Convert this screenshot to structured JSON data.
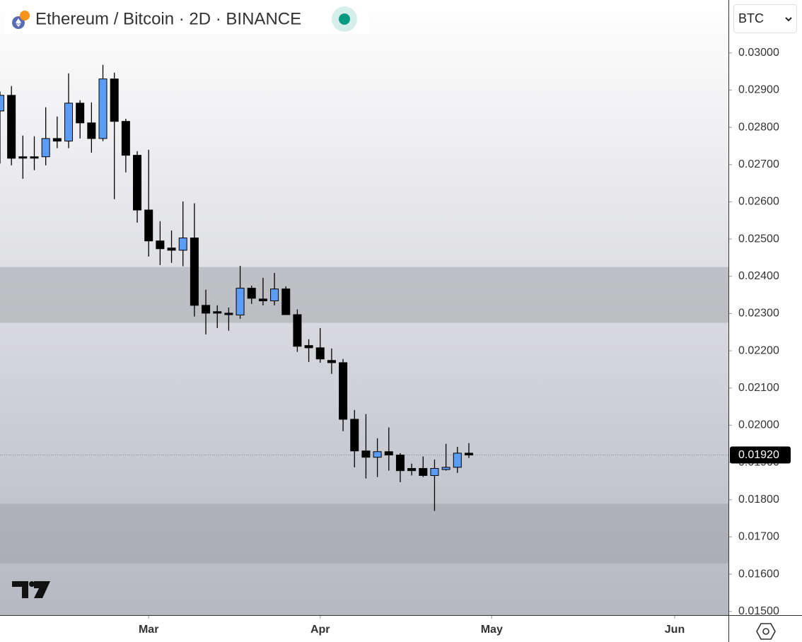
{
  "chart_data": {
    "type": "candlestick",
    "title": "Ethereum / Bitcoin · 2D · BINANCE",
    "currency": "BTC",
    "up_color": "#5b9cf6",
    "down_color": "#000000",
    "xlim": [
      0,
      63.7
    ],
    "xticks": [
      {
        "value": 13,
        "label": "Mar"
      },
      {
        "value": 28,
        "label": "Apr"
      },
      {
        "value": 43,
        "label": "May"
      },
      {
        "value": 59,
        "label": "Jun"
      }
    ],
    "ylim": [
      0.0149,
      0.03142
    ],
    "yticks": [
      {
        "value": 0.015,
        "label": "0.01500"
      },
      {
        "value": 0.016,
        "label": "0.01600"
      },
      {
        "value": 0.017,
        "label": "0.01700"
      },
      {
        "value": 0.018,
        "label": "0.01800"
      },
      {
        "value": 0.019,
        "label": "0.01900"
      },
      {
        "value": 0.02,
        "label": "0.02000"
      },
      {
        "value": 0.021,
        "label": "0.02100"
      },
      {
        "value": 0.022,
        "label": "0.02200"
      },
      {
        "value": 0.023,
        "label": "0.02300"
      },
      {
        "value": 0.024,
        "label": "0.02400"
      },
      {
        "value": 0.025,
        "label": "0.02500"
      },
      {
        "value": 0.026,
        "label": "0.02600"
      },
      {
        "value": 0.027,
        "label": "0.02700"
      },
      {
        "value": 0.028,
        "label": "0.02800"
      },
      {
        "value": 0.029,
        "label": "0.02900"
      },
      {
        "value": 0.03,
        "label": "0.03000"
      }
    ],
    "x": [
      0,
      1,
      2,
      3,
      4,
      5,
      6,
      7,
      8,
      9,
      10,
      11,
      12,
      13,
      14,
      15,
      16,
      17,
      18,
      19,
      20,
      21,
      22,
      23,
      24,
      25,
      26,
      27,
      28,
      29,
      30,
      31,
      32,
      33,
      34,
      35,
      36,
      37,
      38,
      39,
      40,
      41
    ],
    "open": [
      0.02844,
      0.02886,
      0.02721,
      0.02721,
      0.02721,
      0.0277,
      0.02763,
      0.02865,
      0.02812,
      0.0277,
      0.0293,
      0.02816,
      0.02725,
      0.02578,
      0.02495,
      0.02476,
      0.0247,
      0.02503,
      0.02322,
      0.02305,
      0.02301,
      0.02296,
      0.02368,
      0.02339,
      0.02334,
      0.02366,
      0.02297,
      0.02214,
      0.02208,
      0.02174,
      0.02168,
      0.02016,
      0.01931,
      0.01914,
      0.01929,
      0.0192,
      0.01884,
      0.01884,
      0.01865,
      0.01881,
      0.01887,
      0.01925
    ],
    "high": [
      0.02896,
      0.02911,
      0.02778,
      0.02776,
      0.02854,
      0.02829,
      0.02945,
      0.02873,
      0.02867,
      0.02968,
      0.02947,
      0.02823,
      0.02736,
      0.0274,
      0.02548,
      0.02523,
      0.02601,
      0.02596,
      0.02364,
      0.02322,
      0.02316,
      0.02428,
      0.02375,
      0.02396,
      0.02409,
      0.02373,
      0.02311,
      0.02231,
      0.02261,
      0.02206,
      0.02178,
      0.02041,
      0.0203,
      0.01965,
      0.01994,
      0.01925,
      0.01897,
      0.01916,
      0.01908,
      0.0195,
      0.01942,
      0.01952
    ],
    "low": [
      0.02703,
      0.02698,
      0.02662,
      0.02685,
      0.02698,
      0.02744,
      0.02744,
      0.0277,
      0.02732,
      0.02763,
      0.02607,
      0.02679,
      0.02544,
      0.02453,
      0.0243,
      0.02436,
      0.02427,
      0.02292,
      0.02244,
      0.02261,
      0.02254,
      0.02286,
      0.02326,
      0.02322,
      0.02322,
      0.02297,
      0.02197,
      0.0217,
      0.02168,
      0.02138,
      0.01984,
      0.01887,
      0.01857,
      0.01861,
      0.01878,
      0.01847,
      0.01865,
      0.01861,
      0.0177,
      0.01878,
      0.01872,
      0.01912
    ],
    "close": [
      0.02886,
      0.02717,
      0.02719,
      0.02719,
      0.0277,
      0.02763,
      0.02865,
      0.02812,
      0.0277,
      0.0293,
      0.02816,
      0.02725,
      0.02578,
      0.02495,
      0.02474,
      0.0247,
      0.02503,
      0.02322,
      0.02301,
      0.02301,
      0.02297,
      0.02368,
      0.02341,
      0.02334,
      0.02366,
      0.02297,
      0.02212,
      0.02208,
      0.02178,
      0.02168,
      0.02016,
      0.01931,
      0.01914,
      0.01929,
      0.0192,
      0.01878,
      0.01878,
      0.01865,
      0.01884,
      0.01887,
      0.01925,
      0.0192
    ],
    "zones": [
      {
        "from": 0.02275,
        "to": 0.02425
      },
      {
        "from": 0.01629,
        "to": 0.01789
      }
    ],
    "last_price": {
      "value": 0.0192,
      "label": "0.01920"
    }
  }
}
